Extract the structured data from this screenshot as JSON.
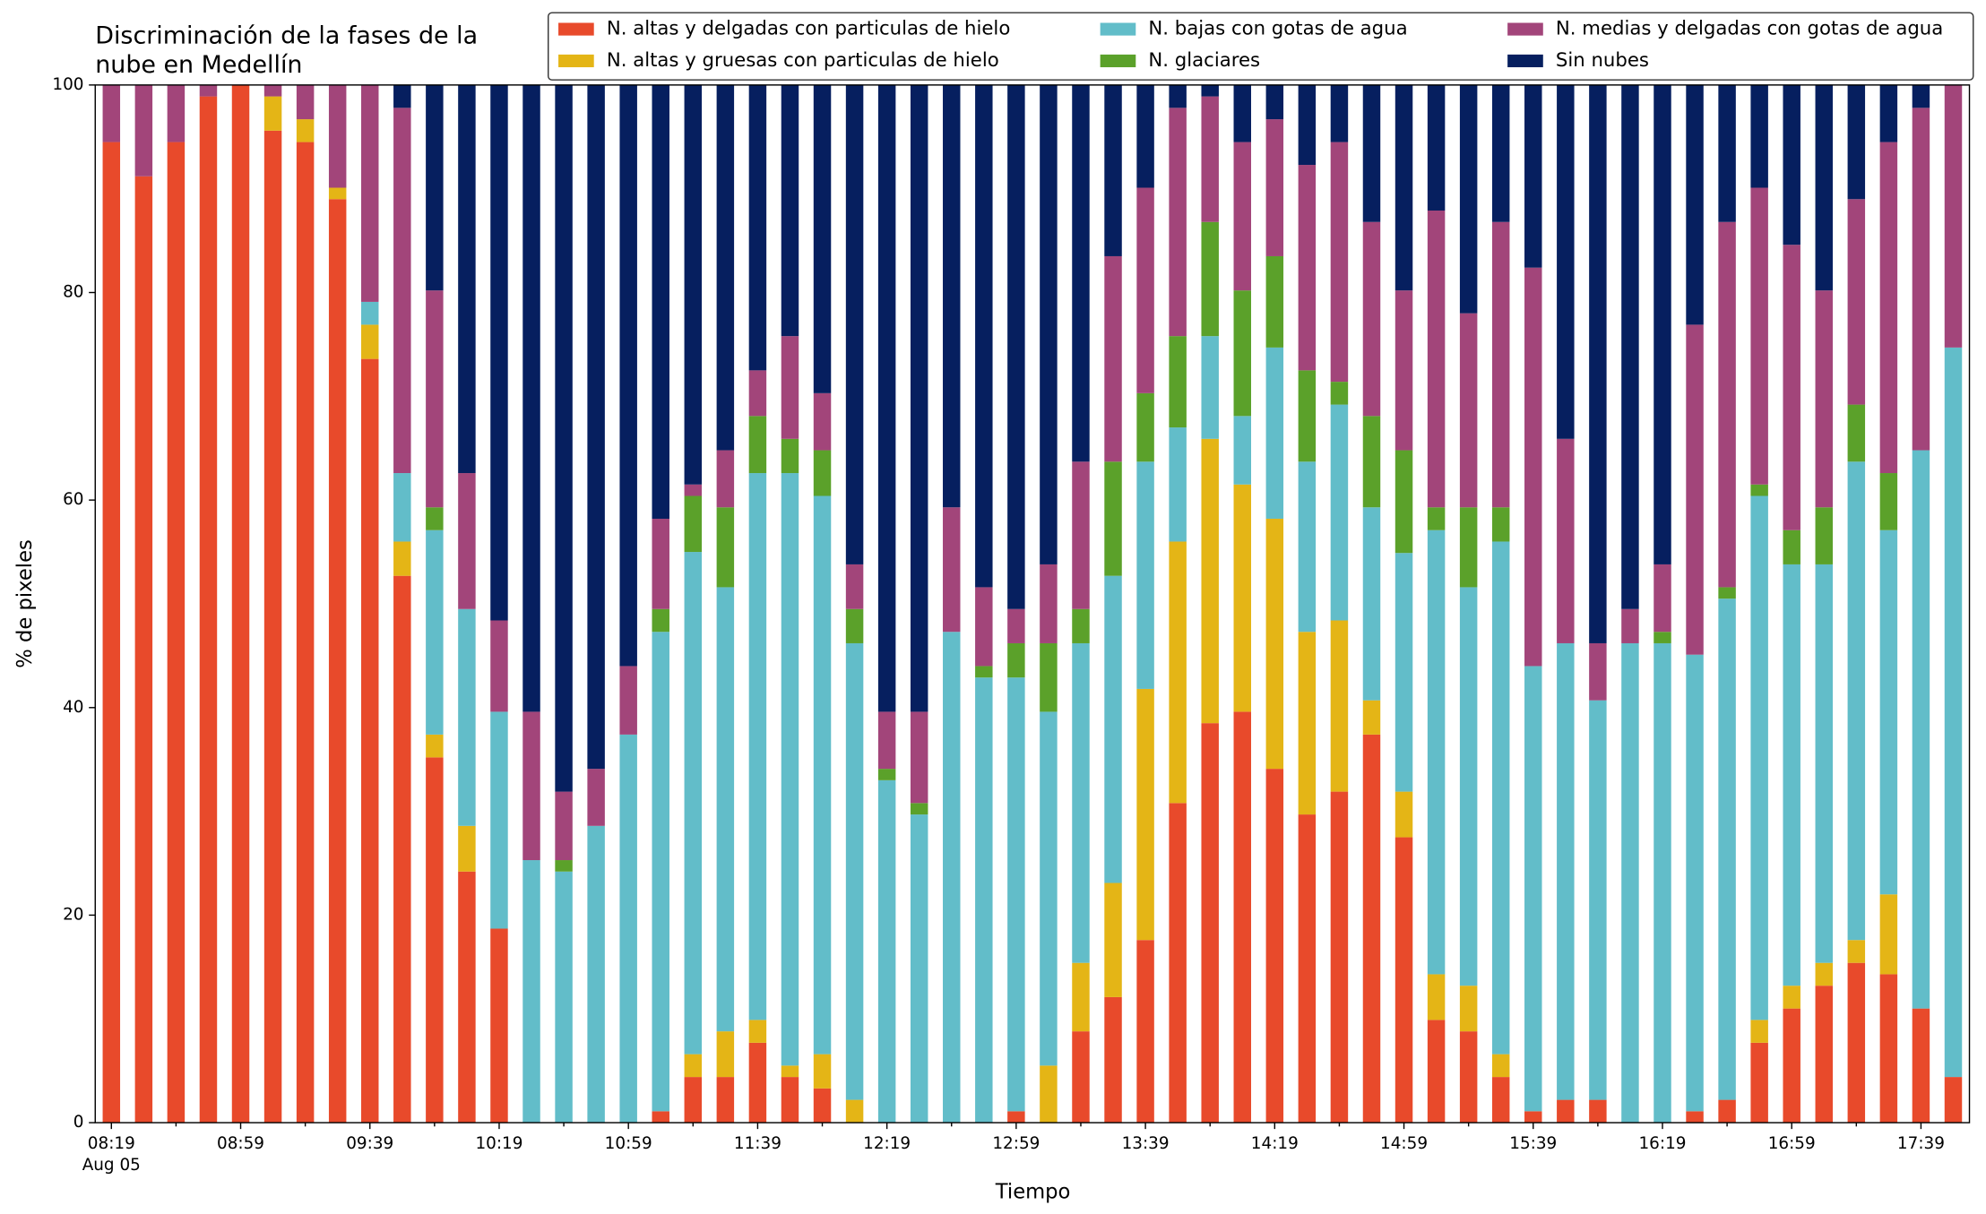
{
  "chart_data": {
    "type": "stacked_bar",
    "title": [
      "Discriminación de la fases de la",
      "nube en Medellín"
    ],
    "xlabel": "Tiempo",
    "ylabel": "% de pixeles",
    "x_date_label": "Aug 05",
    "categories": [
      "08:19",
      null,
      null,
      null,
      "08:59",
      null,
      null,
      null,
      "09:39",
      null,
      null,
      null,
      "10:19",
      null,
      null,
      null,
      "10:59",
      null,
      null,
      null,
      "11:39",
      null,
      null,
      null,
      "12:19",
      null,
      null,
      null,
      "12:59",
      null,
      null,
      null,
      "13:39",
      null,
      null,
      null,
      "14:19",
      null,
      null,
      null,
      "14:59",
      null,
      null,
      null,
      "15:39",
      null,
      null,
      null,
      "16:19",
      null,
      null,
      null,
      "16:59",
      null,
      null,
      null,
      "17:39",
      null
    ],
    "ylim": [
      0,
      100
    ],
    "yticks": [
      0,
      20,
      40,
      60,
      80,
      100
    ],
    "legend": "top-right",
    "series": [
      {
        "name": "N. altas y delgadas con particulas de hielo",
        "color": "#e84a2b",
        "values": [
          94.5,
          91.2,
          94.5,
          98.9,
          100,
          95.6,
          94.5,
          89.0,
          73.6,
          52.7,
          35.2,
          24.2,
          18.7,
          0,
          0,
          0,
          0,
          1.1,
          4.4,
          4.4,
          7.7,
          4.4,
          3.3,
          0,
          0,
          0,
          0,
          0,
          1.1,
          0,
          8.8,
          12.1,
          17.6,
          30.8,
          38.5,
          39.6,
          34.1,
          29.7,
          31.9,
          37.4,
          27.5,
          9.9,
          8.8,
          4.4,
          1.1,
          2.2,
          2.2,
          0,
          0,
          1.1,
          2.2,
          7.7,
          11.0,
          13.2,
          15.4,
          14.3,
          11.0,
          4.4
        ]
      },
      {
        "name": "N. altas y gruesas con particulas de hielo",
        "color": "#e4b516",
        "values": [
          0,
          0,
          0,
          0,
          0,
          3.3,
          2.2,
          1.1,
          3.3,
          3.3,
          2.2,
          4.4,
          0,
          0,
          0,
          0,
          0,
          0,
          2.2,
          4.4,
          2.2,
          1.1,
          3.3,
          2.2,
          0,
          0,
          0,
          0,
          0,
          5.5,
          6.6,
          11.0,
          24.2,
          25.2,
          27.4,
          21.9,
          24.1,
          17.6,
          16.5,
          3.3,
          4.4,
          4.4,
          4.4,
          2.2,
          0,
          0,
          0,
          0,
          0,
          0,
          0,
          2.2,
          2.2,
          2.2,
          2.2,
          7.7,
          0,
          0
        ]
      },
      {
        "name": "N. bajas con gotas de agua",
        "color": "#62bdc9",
        "values": [
          0,
          0,
          0,
          0,
          0,
          0,
          0,
          0,
          2.2,
          6.6,
          19.7,
          20.9,
          20.9,
          25.3,
          24.2,
          28.6,
          37.4,
          46.2,
          48.4,
          42.8,
          52.7,
          57.1,
          53.8,
          44.0,
          33.0,
          29.7,
          47.3,
          42.9,
          41.8,
          34.1,
          30.8,
          29.6,
          21.9,
          11.0,
          9.9,
          6.6,
          16.5,
          16.4,
          20.8,
          18.6,
          23.0,
          42.8,
          38.4,
          49.4,
          42.9,
          44.0,
          38.5,
          46.2,
          46.2,
          44.0,
          48.3,
          50.5,
          40.6,
          38.4,
          46.1,
          35.1,
          53.8,
          70.3
        ]
      },
      {
        "name": "N. glaciares",
        "color": "#5ba12a",
        "values": [
          0,
          0,
          0,
          0,
          0,
          0,
          0,
          0,
          0,
          0,
          2.2,
          0,
          0,
          0,
          1.1,
          0,
          0,
          2.2,
          5.4,
          7.7,
          5.5,
          3.3,
          4.4,
          3.3,
          1.1,
          1.1,
          0,
          1.1,
          3.3,
          6.6,
          3.3,
          11.0,
          6.6,
          8.8,
          11.0,
          12.1,
          8.8,
          8.8,
          2.2,
          8.8,
          9.9,
          2.2,
          7.7,
          3.3,
          0,
          0,
          0,
          0,
          1.1,
          0,
          1.1,
          1.1,
          3.3,
          5.5,
          5.5,
          5.5,
          0,
          0
        ]
      },
      {
        "name": "N. medias y delgadas con gotas de agua",
        "color": "#a2457a",
        "values": [
          5.5,
          8.8,
          5.5,
          1.1,
          0,
          1.1,
          3.3,
          9.9,
          20.9,
          35.2,
          20.9,
          13.1,
          8.8,
          14.3,
          6.6,
          5.5,
          6.6,
          8.7,
          1.1,
          5.5,
          4.4,
          9.9,
          5.5,
          4.3,
          5.5,
          8.8,
          12.0,
          7.6,
          3.3,
          7.6,
          14.2,
          19.8,
          19.8,
          22.0,
          12.1,
          14.3,
          13.2,
          19.8,
          23.1,
          18.7,
          15.4,
          28.6,
          18.7,
          27.5,
          38.4,
          19.7,
          5.5,
          3.3,
          6.5,
          31.8,
          35.2,
          28.6,
          27.5,
          20.9,
          19.8,
          31.9,
          33.0,
          25.3
        ]
      },
      {
        "name": "Sin nubes",
        "color": "#061f5f",
        "values": [
          0,
          0,
          0,
          0,
          0,
          0,
          0,
          0,
          0,
          2.2,
          19.8,
          37.4,
          51.6,
          60.4,
          68.1,
          65.9,
          56.0,
          41.8,
          38.5,
          35.2,
          27.5,
          24.2,
          29.7,
          46.2,
          60.4,
          60.4,
          40.7,
          48.4,
          50.5,
          46.2,
          36.3,
          16.5,
          9.9,
          2.2,
          1.1,
          5.5,
          3.3,
          7.7,
          5.5,
          13.2,
          19.8,
          12.1,
          22.0,
          13.2,
          17.6,
          34.1,
          53.8,
          50.5,
          46.2,
          23.1,
          13.2,
          9.9,
          15.4,
          19.8,
          11.0,
          5.5,
          2.2,
          0
        ]
      }
    ]
  }
}
